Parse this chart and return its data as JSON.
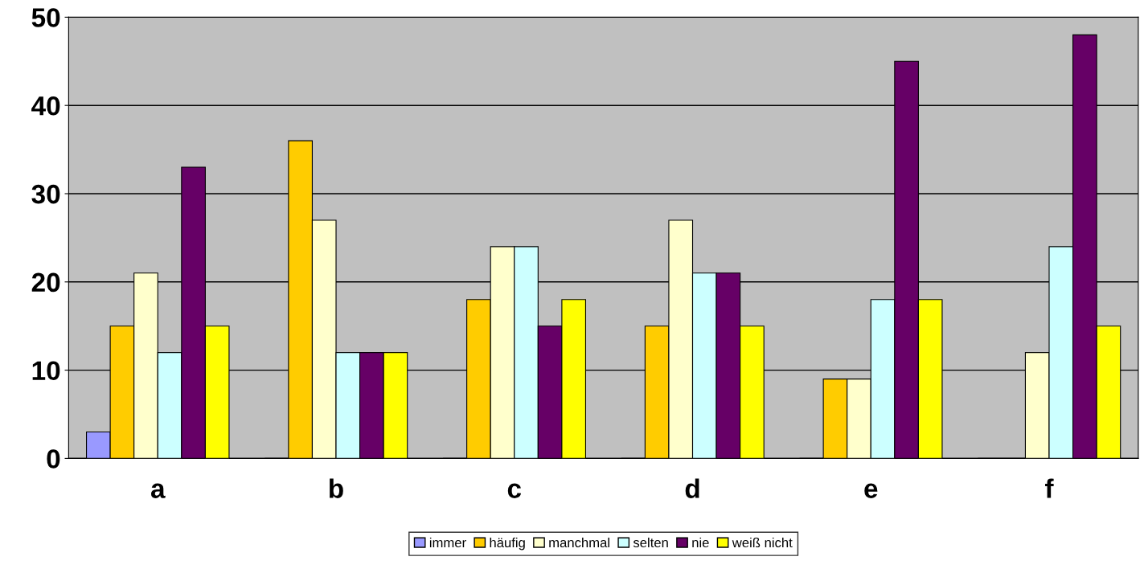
{
  "chart_data": {
    "type": "bar",
    "categories": [
      "a",
      "b",
      "c",
      "d",
      "e",
      "f"
    ],
    "series": [
      {
        "name": "immer",
        "color": "#9999ff",
        "values": [
          3,
          0,
          0,
          0,
          0,
          0
        ]
      },
      {
        "name": "häufig",
        "color": "#ffcc00",
        "values": [
          15,
          36,
          18,
          15,
          9,
          0
        ]
      },
      {
        "name": "manchmal",
        "color": "#ffffcc",
        "values": [
          21,
          27,
          24,
          27,
          9,
          12
        ]
      },
      {
        "name": "selten",
        "color": "#ccffff",
        "values": [
          12,
          12,
          24,
          21,
          18,
          24
        ]
      },
      {
        "name": "nie",
        "color": "#660066",
        "values": [
          33,
          12,
          15,
          21,
          45,
          48
        ]
      },
      {
        "name": "weiß nicht",
        "color": "#ffff00",
        "values": [
          15,
          12,
          18,
          15,
          18,
          15
        ]
      }
    ],
    "ylim": [
      0,
      50
    ],
    "yticks": [
      0,
      10,
      20,
      30,
      40,
      50
    ],
    "grid": "y",
    "legend": "bottom"
  }
}
